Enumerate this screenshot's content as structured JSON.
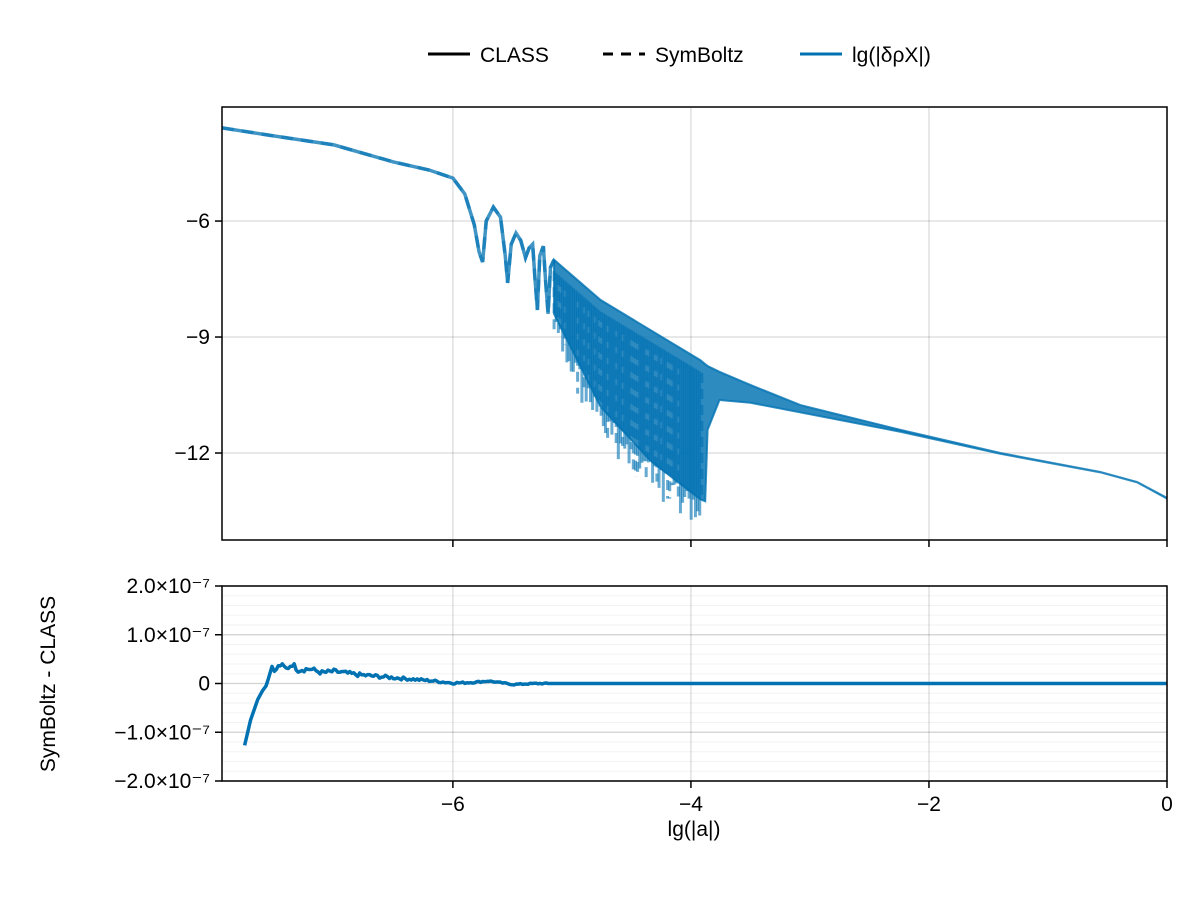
{
  "chart_data": [
    {
      "type": "line",
      "panel": "top",
      "legend": {
        "placement": "top",
        "entries": [
          {
            "label": "CLASS",
            "style": "solid",
            "color": "#000000"
          },
          {
            "label": "SymBoltz",
            "style": "dashed",
            "color": "#000000"
          },
          {
            "label": "lg(|δρX|)",
            "style": "solid",
            "color": "#0072b2"
          }
        ]
      },
      "xlim": [
        -7.94,
        0
      ],
      "ylim": [
        -14.25,
        -3.05
      ],
      "xticks": [
        -6,
        -4,
        -2,
        0
      ],
      "xtick_labels_shown": false,
      "yticks": [
        -6,
        -9,
        -12
      ],
      "ytick_labels": [
        "−6",
        "−9",
        "−12"
      ],
      "grid": true,
      "series_color": "#0072b2",
      "series": [
        {
          "name": "lg(|δρX|)",
          "smooth": {
            "x": [
              -7.94,
              -7.5,
              -7.0,
              -6.5,
              -6.2,
              -6.0,
              -5.9,
              -5.82,
              -5.78,
              -5.75,
              -5.72,
              -5.66,
              -5.6,
              -5.56,
              -5.54,
              -5.51,
              -5.47,
              -5.43,
              -5.39,
              -5.36,
              -5.33,
              -5.31,
              -5.29,
              -5.27,
              -5.24,
              -5.22,
              -5.2,
              -5.18,
              -5.15
            ],
            "y": [
              -3.59,
              -3.8,
              -4.03,
              -4.47,
              -4.68,
              -4.89,
              -5.3,
              -6.1,
              -6.8,
              -7.06,
              -6.0,
              -5.64,
              -5.9,
              -6.9,
              -7.6,
              -6.6,
              -6.31,
              -6.5,
              -6.95,
              -6.7,
              -6.6,
              -7.5,
              -8.3,
              -6.9,
              -6.65,
              -7.6,
              -8.4,
              -7.2,
              -7.0
            ]
          },
          "band": {
            "x": [
              -5.15,
              -4.76,
              -4.34,
              -3.92,
              -3.88,
              -3.86,
              -3.76,
              -3.5,
              -3.08,
              -2.24,
              -1.4,
              -0.56,
              -0.25,
              0
            ],
            "upper": [
              -7.0,
              -8.04,
              -8.82,
              -9.6,
              -9.7,
              -9.75,
              -9.9,
              -10.24,
              -10.76,
              -11.4,
              -12.0,
              -12.49,
              -12.75,
              -13.16
            ],
            "lower": [
              -8.4,
              -10.8,
              -12.2,
              -13.2,
              -13.25,
              -11.4,
              -10.63,
              -10.7,
              -10.95,
              -11.45,
              -12.02,
              -12.5,
              -12.76,
              -13.18
            ]
          }
        }
      ]
    },
    {
      "type": "line",
      "panel": "bottom",
      "xlabel": "lg(|a|)",
      "ylabel": "SymBoltz - CLASS",
      "xlim": [
        -7.94,
        0
      ],
      "ylim": [
        -2e-07,
        2e-07
      ],
      "xticks": [
        -6,
        -4,
        -2,
        0
      ],
      "xtick_labels": [
        "−6",
        "−4",
        "−2",
        "0"
      ],
      "yticks": [
        2e-07,
        1e-07,
        0,
        -1e-07,
        -2e-07
      ],
      "ytick_labels": [
        "2.0×10⁻⁷",
        "1.0×10⁻⁷",
        "0",
        "−1.0×10⁻⁷",
        "−2.0×10⁻⁷"
      ],
      "grid": true,
      "minor_grid": true,
      "series_color": "#0072b2",
      "series": [
        {
          "x": [
            -7.75,
            -7.7,
            -7.64,
            -7.6,
            -7.57,
            -7.55,
            -7.52,
            -7.5,
            -7.45,
            -7.4,
            -7.35,
            -7.3,
            -7.2,
            -7.1,
            -7.0,
            -6.8,
            -6.6,
            -6.4,
            -6.2,
            -6.0,
            -5.85,
            -5.7,
            -5.55,
            -5.5,
            -5.3,
            -5.0,
            -4.0,
            -2.0,
            0
          ],
          "y": [
            -1.27e-07,
            -7.5e-08,
            -3.3e-08,
            -1.5e-08,
            -5e-09,
            1e-08,
            3.5e-08,
            2.5e-08,
            3.8e-08,
            3e-08,
            4e-08,
            2.8e-08,
            3e-08,
            2.2e-08,
            2.5e-08,
            1.8e-08,
            1.4e-08,
            1e-08,
            6e-09,
            1e-09,
            2e-09,
            5e-09,
            0.0,
            -2e-09,
            0.0,
            0.0,
            0.0,
            0.0,
            0.0
          ]
        }
      ]
    }
  ]
}
